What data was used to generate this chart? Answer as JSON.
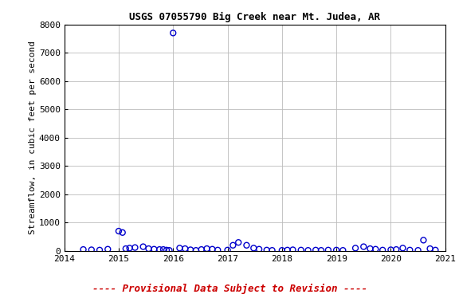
{
  "title": "USGS 07055790 Big Creek near Mt. Judea, AR",
  "ylabel": "Streamflow, in cubic feet per second",
  "xlim": [
    2014,
    2021
  ],
  "ylim": [
    0,
    8000
  ],
  "yticks": [
    0,
    1000,
    2000,
    3000,
    4000,
    5000,
    6000,
    7000,
    8000
  ],
  "xticks": [
    2014,
    2015,
    2016,
    2017,
    2018,
    2019,
    2020,
    2021
  ],
  "marker_color": "#0000cc",
  "marker_facecolor": "none",
  "marker_style": "o",
  "marker_size": 5,
  "marker_lw": 1.0,
  "grid_color": "#bbbbbb",
  "background_color": "#ffffff",
  "annotation": "---- Provisional Data Subject to Revision ----",
  "annotation_color": "#cc0000",
  "title_fontsize": 9,
  "label_fontsize": 8,
  "tick_fontsize": 8,
  "annot_fontsize": 9,
  "x_data": [
    2014.35,
    2014.5,
    2014.65,
    2014.8,
    2015.0,
    2015.07,
    2015.13,
    2015.2,
    2015.3,
    2015.45,
    2015.55,
    2015.65,
    2015.75,
    2015.82,
    2015.88,
    2015.93,
    2016.0,
    2016.12,
    2016.22,
    2016.32,
    2016.42,
    2016.52,
    2016.62,
    2016.72,
    2016.82,
    2017.0,
    2017.1,
    2017.2,
    2017.35,
    2017.48,
    2017.58,
    2017.72,
    2017.82,
    2018.0,
    2018.1,
    2018.2,
    2018.35,
    2018.48,
    2018.62,
    2018.72,
    2018.85,
    2019.0,
    2019.12,
    2019.35,
    2019.5,
    2019.62,
    2019.72,
    2019.85,
    2020.0,
    2020.1,
    2020.22,
    2020.35,
    2020.5,
    2020.6,
    2020.72,
    2020.82
  ],
  "y_data": [
    50,
    40,
    30,
    60,
    700,
    650,
    80,
    100,
    120,
    150,
    80,
    60,
    50,
    50,
    30,
    20,
    7700,
    100,
    80,
    40,
    20,
    50,
    80,
    60,
    30,
    30,
    200,
    300,
    200,
    100,
    60,
    30,
    20,
    20,
    30,
    40,
    30,
    20,
    30,
    20,
    30,
    30,
    20,
    100,
    150,
    80,
    60,
    30,
    40,
    50,
    100,
    30,
    20,
    380,
    80,
    30
  ]
}
